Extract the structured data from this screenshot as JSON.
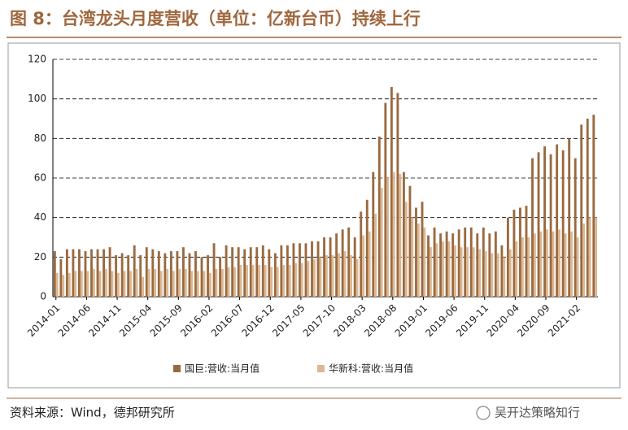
{
  "chart_data": {
    "type": "bar",
    "title": "图 8：台湾龙头月度营收（单位：亿新台币）持续上行",
    "source": "资料来源：Wind，德邦研究所",
    "watermark": "吴开达策略知行",
    "categories": [
      "2014-01",
      null,
      null,
      null,
      null,
      "2014-06",
      null,
      null,
      null,
      null,
      "2014-11",
      null,
      null,
      null,
      null,
      "2015-04",
      null,
      null,
      null,
      null,
      "2015-09",
      null,
      null,
      null,
      null,
      "2016-02",
      null,
      null,
      null,
      null,
      "2016-07",
      null,
      null,
      null,
      null,
      "2016-12",
      null,
      null,
      null,
      null,
      "2017-05",
      null,
      null,
      null,
      null,
      "2017-10",
      null,
      null,
      null,
      null,
      "2018-03",
      null,
      null,
      null,
      null,
      "2018-08",
      null,
      null,
      null,
      null,
      "2019-01",
      null,
      null,
      null,
      null,
      "2019-06",
      null,
      null,
      null,
      null,
      "2019-11",
      null,
      null,
      null,
      null,
      "2020-04",
      null,
      null,
      null,
      null,
      "2020-09",
      null,
      null,
      null,
      null,
      "2021-02",
      null,
      null,
      null
    ],
    "series": [
      {
        "name": "国巨:营收:当月值",
        "color": "#9a6a3f",
        "values": [
          23,
          19,
          24,
          24,
          24,
          23,
          24,
          24,
          24,
          25,
          21,
          22,
          21,
          26,
          21,
          25,
          24,
          23,
          22,
          23,
          23,
          25,
          22,
          23,
          20,
          21,
          27,
          20,
          26,
          25,
          25,
          24,
          25,
          25,
          26,
          24,
          22,
          26,
          26,
          27,
          27,
          27,
          28,
          28,
          30,
          30,
          32,
          34,
          35,
          30,
          43,
          49,
          63,
          81,
          98,
          106,
          103,
          63,
          56,
          45,
          48,
          31,
          35,
          32,
          33,
          32,
          34,
          35,
          35,
          32,
          35,
          32,
          33,
          26,
          40,
          44,
          45,
          46,
          70,
          73,
          76,
          72,
          77,
          74,
          80,
          70,
          87,
          90,
          92
        ]
      },
      {
        "name": "华新科:营收:当月值",
        "color": "#dcb894",
        "values": [
          12,
          11,
          12,
          13,
          13,
          13,
          14,
          13,
          14,
          13,
          12,
          13,
          13,
          14,
          10,
          14,
          14,
          13,
          14,
          13,
          14,
          14,
          13,
          13,
          13,
          12,
          14,
          14,
          15,
          15,
          16,
          16,
          16,
          16,
          16,
          15,
          15,
          16,
          16,
          17,
          17,
          18,
          19,
          20,
          21,
          21,
          22,
          23,
          21,
          19,
          31,
          33,
          42,
          55,
          60,
          63,
          62,
          48,
          40,
          37,
          35,
          25,
          27,
          28,
          28,
          26,
          25,
          25,
          25,
          24,
          23,
          22,
          22,
          20,
          24,
          28,
          30,
          30,
          32,
          33,
          34,
          33,
          34,
          32,
          33,
          30,
          37,
          40,
          40
        ]
      }
    ],
    "ylim": [
      0,
      120
    ],
    "yticks": [
      0,
      20,
      40,
      60,
      80,
      100,
      120
    ],
    "grid": true
  }
}
